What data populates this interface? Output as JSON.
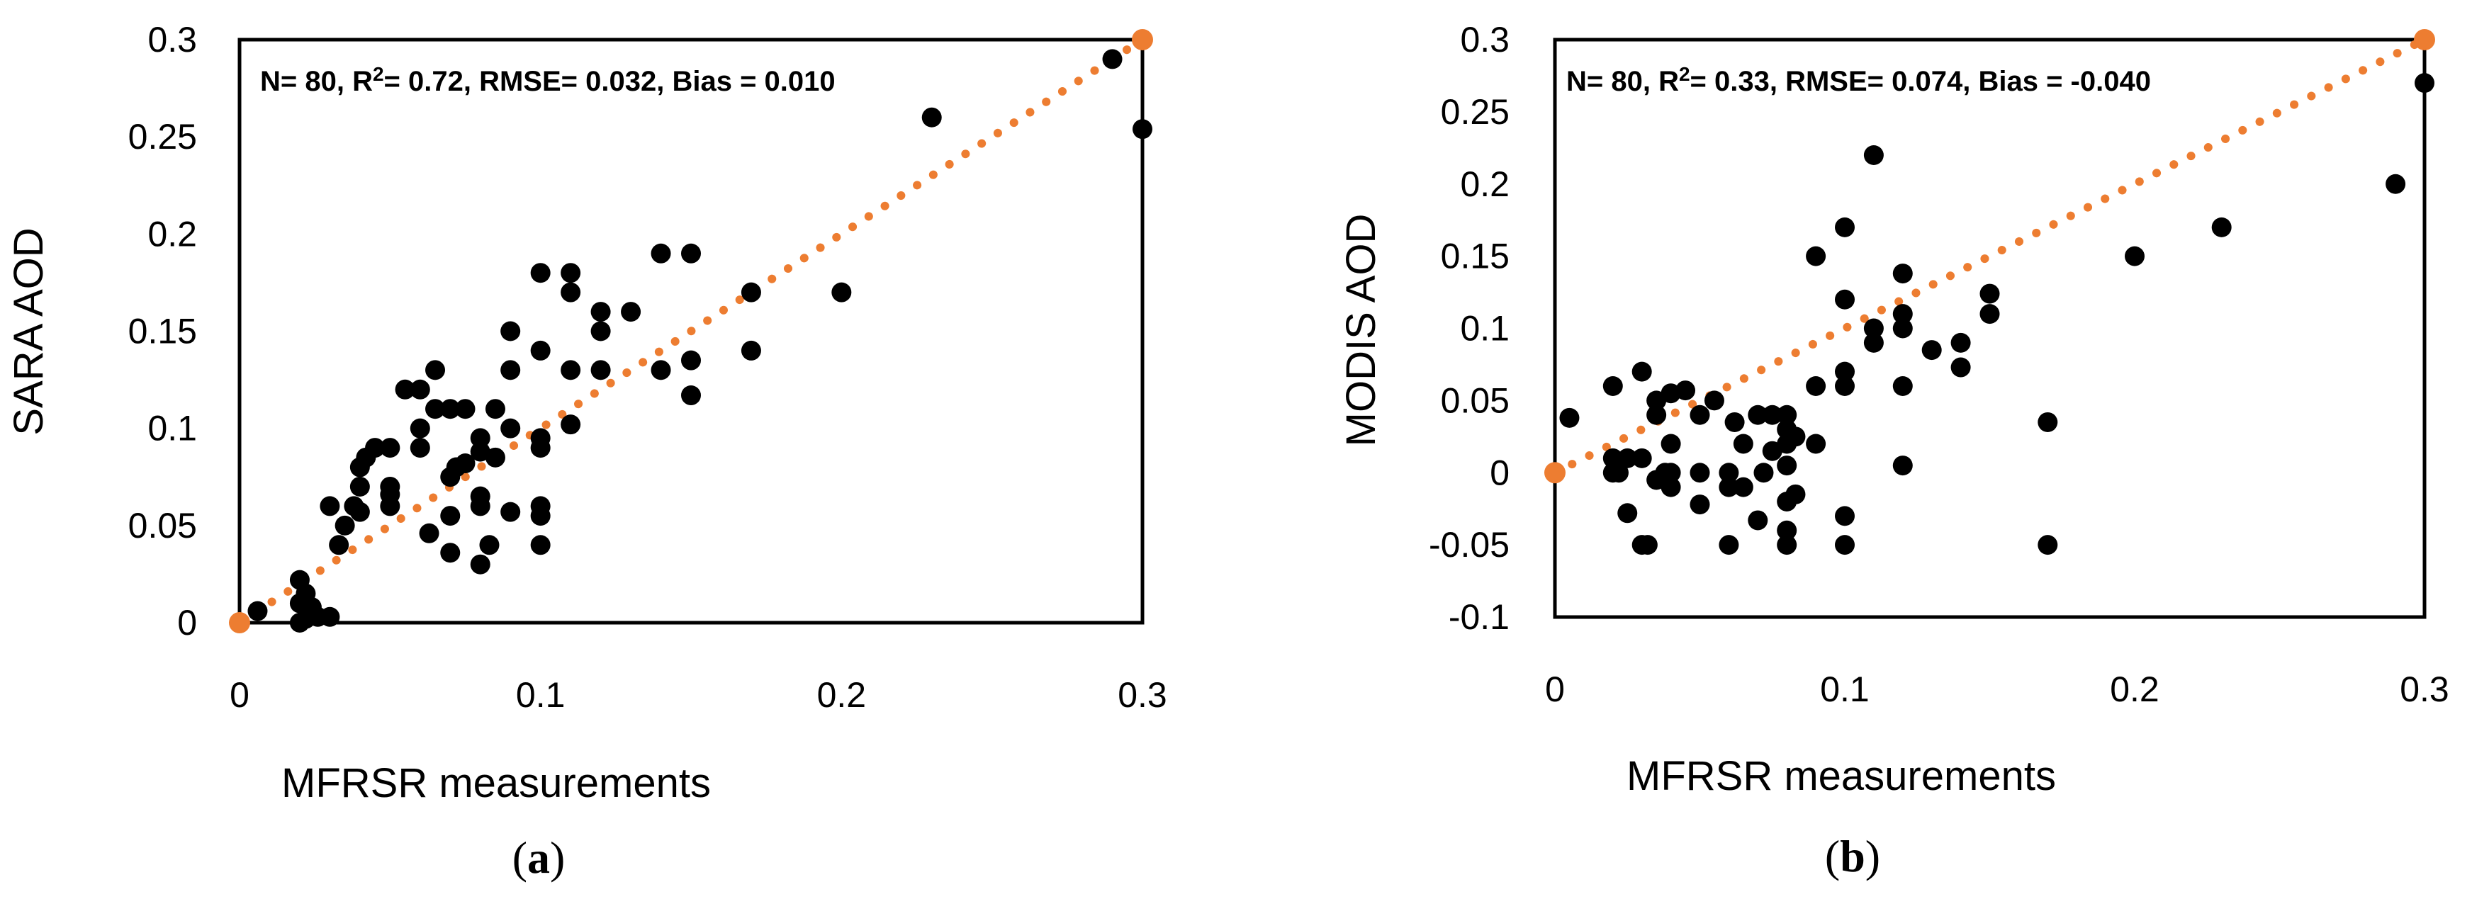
{
  "colors": {
    "points": "#000000",
    "fit": "#ED7D31",
    "frame": "#000000"
  },
  "chart_data": [
    {
      "type": "scatter",
      "panel": "a",
      "panel_label": "a",
      "xlabel": "MFRSR measurements",
      "ylabel": "SARA AOD",
      "xlim": [
        0,
        0.3
      ],
      "ylim": [
        0,
        0.3
      ],
      "xticks": [
        0,
        0.1,
        0.2,
        0.3
      ],
      "xtick_labels": [
        "0",
        "0.1",
        "0.2",
        "0.3"
      ],
      "yticks": [
        0,
        0.05,
        0.1,
        0.15,
        0.2,
        0.25,
        0.3
      ],
      "ytick_labels": [
        "0",
        "0.05",
        "0.1",
        "0.15",
        "0.2",
        "0.25",
        "0.3"
      ],
      "stats": {
        "prefix": "N= 80, R",
        "sup": "2",
        "suffix": "= 0.72, RMSE= 0.032, Bias = 0.010"
      },
      "fit_line": {
        "x": [
          0,
          0.3
        ],
        "y": [
          0,
          0.3
        ],
        "style": "dotted"
      },
      "points": [
        [
          0.006,
          0.006
        ],
        [
          0.02,
          0.022
        ],
        [
          0.022,
          0.015
        ],
        [
          0.02,
          0.01
        ],
        [
          0.024,
          0.008
        ],
        [
          0.026,
          0.003
        ],
        [
          0.022,
          0.002
        ],
        [
          0.02,
          0.0
        ],
        [
          0.03,
          0.003
        ],
        [
          0.03,
          0.06
        ],
        [
          0.033,
          0.04
        ],
        [
          0.035,
          0.05
        ],
        [
          0.038,
          0.06
        ],
        [
          0.04,
          0.057
        ],
        [
          0.04,
          0.07
        ],
        [
          0.04,
          0.08
        ],
        [
          0.042,
          0.085
        ],
        [
          0.045,
          0.09
        ],
        [
          0.05,
          0.09
        ],
        [
          0.05,
          0.066
        ],
        [
          0.05,
          0.06
        ],
        [
          0.05,
          0.07
        ],
        [
          0.055,
          0.12
        ],
        [
          0.06,
          0.12
        ],
        [
          0.06,
          0.1
        ],
        [
          0.06,
          0.09
        ],
        [
          0.063,
          0.046
        ],
        [
          0.065,
          0.13
        ],
        [
          0.065,
          0.11
        ],
        [
          0.07,
          0.11
        ],
        [
          0.07,
          0.075
        ],
        [
          0.07,
          0.055
        ],
        [
          0.07,
          0.036
        ],
        [
          0.072,
          0.08
        ],
        [
          0.075,
          0.11
        ],
        [
          0.075,
          0.082
        ],
        [
          0.08,
          0.095
        ],
        [
          0.08,
          0.088
        ],
        [
          0.08,
          0.065
        ],
        [
          0.08,
          0.06
        ],
        [
          0.08,
          0.03
        ],
        [
          0.083,
          0.04
        ],
        [
          0.085,
          0.085
        ],
        [
          0.085,
          0.11
        ],
        [
          0.09,
          0.15
        ],
        [
          0.09,
          0.13
        ],
        [
          0.09,
          0.1
        ],
        [
          0.09,
          0.057
        ],
        [
          0.1,
          0.18
        ],
        [
          0.1,
          0.14
        ],
        [
          0.1,
          0.095
        ],
        [
          0.1,
          0.09
        ],
        [
          0.1,
          0.06
        ],
        [
          0.1,
          0.055
        ],
        [
          0.1,
          0.04
        ],
        [
          0.11,
          0.18
        ],
        [
          0.11,
          0.17
        ],
        [
          0.11,
          0.13
        ],
        [
          0.11,
          0.102
        ],
        [
          0.12,
          0.16
        ],
        [
          0.12,
          0.15
        ],
        [
          0.12,
          0.13
        ],
        [
          0.13,
          0.16
        ],
        [
          0.14,
          0.19
        ],
        [
          0.14,
          0.13
        ],
        [
          0.15,
          0.19
        ],
        [
          0.15,
          0.135
        ],
        [
          0.15,
          0.117
        ],
        [
          0.17,
          0.17
        ],
        [
          0.17,
          0.14
        ],
        [
          0.2,
          0.17
        ],
        [
          0.23,
          0.26
        ],
        [
          0.29,
          0.29
        ],
        [
          0.3,
          0.254
        ]
      ],
      "endpoints": [
        [
          0,
          0
        ],
        [
          0.3,
          0.3
        ]
      ]
    },
    {
      "type": "scatter",
      "panel": "b",
      "panel_label": "b",
      "xlabel": "MFRSR measurements",
      "ylabel": "MODIS AOD",
      "xlim": [
        0,
        0.3
      ],
      "ylim": [
        -0.1,
        0.3
      ],
      "xticks": [
        0,
        0.1,
        0.2,
        0.3
      ],
      "xtick_labels": [
        "0",
        "0.1",
        "0.2",
        "0.3"
      ],
      "yticks": [
        -0.1,
        -0.05,
        0,
        0.05,
        0.1,
        0.15,
        0.2,
        0.25,
        0.3
      ],
      "ytick_labels": [
        "-0.1",
        "-0.05",
        "0",
        "0.05",
        "0.1",
        "0.15",
        "0.2",
        "0.25",
        "0.3"
      ],
      "stats": {
        "prefix": "N= 80, R",
        "sup": "2",
        "suffix": "= 0.33, RMSE= 0.074, Bias = -0.040"
      },
      "fit_line": {
        "x": [
          0,
          0.3
        ],
        "y": [
          0,
          0.3
        ],
        "style": "dotted"
      },
      "points": [
        [
          0.005,
          0.038
        ],
        [
          0.02,
          0.06
        ],
        [
          0.02,
          0.01
        ],
        [
          0.02,
          0.0
        ],
        [
          0.022,
          0.0
        ],
        [
          0.025,
          0.01
        ],
        [
          0.025,
          -0.028
        ],
        [
          0.03,
          0.07
        ],
        [
          0.03,
          0.01
        ],
        [
          0.03,
          -0.05
        ],
        [
          0.032,
          -0.05
        ],
        [
          0.035,
          0.05
        ],
        [
          0.035,
          0.04
        ],
        [
          0.035,
          -0.005
        ],
        [
          0.038,
          0.0
        ],
        [
          0.04,
          0.055
        ],
        [
          0.04,
          0.02
        ],
        [
          0.04,
          0.0
        ],
        [
          0.04,
          -0.01
        ],
        [
          0.045,
          0.057
        ],
        [
          0.05,
          0.04
        ],
        [
          0.05,
          0.0
        ],
        [
          0.05,
          -0.022
        ],
        [
          0.055,
          0.05
        ],
        [
          0.06,
          0.0
        ],
        [
          0.06,
          -0.01
        ],
        [
          0.06,
          -0.05
        ],
        [
          0.062,
          0.035
        ],
        [
          0.065,
          0.02
        ],
        [
          0.065,
          -0.01
        ],
        [
          0.07,
          0.04
        ],
        [
          0.07,
          -0.033
        ],
        [
          0.072,
          0.0
        ],
        [
          0.075,
          0.04
        ],
        [
          0.075,
          0.015
        ],
        [
          0.08,
          0.04
        ],
        [
          0.08,
          0.03
        ],
        [
          0.08,
          0.02
        ],
        [
          0.08,
          0.005
        ],
        [
          0.08,
          -0.02
        ],
        [
          0.08,
          -0.04
        ],
        [
          0.08,
          -0.05
        ],
        [
          0.083,
          0.025
        ],
        [
          0.083,
          -0.015
        ],
        [
          0.09,
          0.15
        ],
        [
          0.09,
          0.06
        ],
        [
          0.09,
          0.02
        ],
        [
          0.1,
          0.17
        ],
        [
          0.1,
          0.12
        ],
        [
          0.1,
          0.07
        ],
        [
          0.1,
          0.06
        ],
        [
          0.1,
          -0.03
        ],
        [
          0.1,
          -0.05
        ],
        [
          0.11,
          0.22
        ],
        [
          0.11,
          0.1
        ],
        [
          0.11,
          0.09
        ],
        [
          0.12,
          0.138
        ],
        [
          0.12,
          0.11
        ],
        [
          0.12,
          0.1
        ],
        [
          0.12,
          0.06
        ],
        [
          0.12,
          0.005
        ],
        [
          0.13,
          0.085
        ],
        [
          0.14,
          0.09
        ],
        [
          0.14,
          0.073
        ],
        [
          0.15,
          0.124
        ],
        [
          0.15,
          0.11
        ],
        [
          0.17,
          0.035
        ],
        [
          0.17,
          -0.05
        ],
        [
          0.2,
          0.15
        ],
        [
          0.23,
          0.17
        ],
        [
          0.29,
          0.2
        ],
        [
          0.3,
          0.27
        ]
      ],
      "endpoints": [
        [
          0,
          0
        ],
        [
          0.3,
          0.3
        ]
      ]
    }
  ]
}
